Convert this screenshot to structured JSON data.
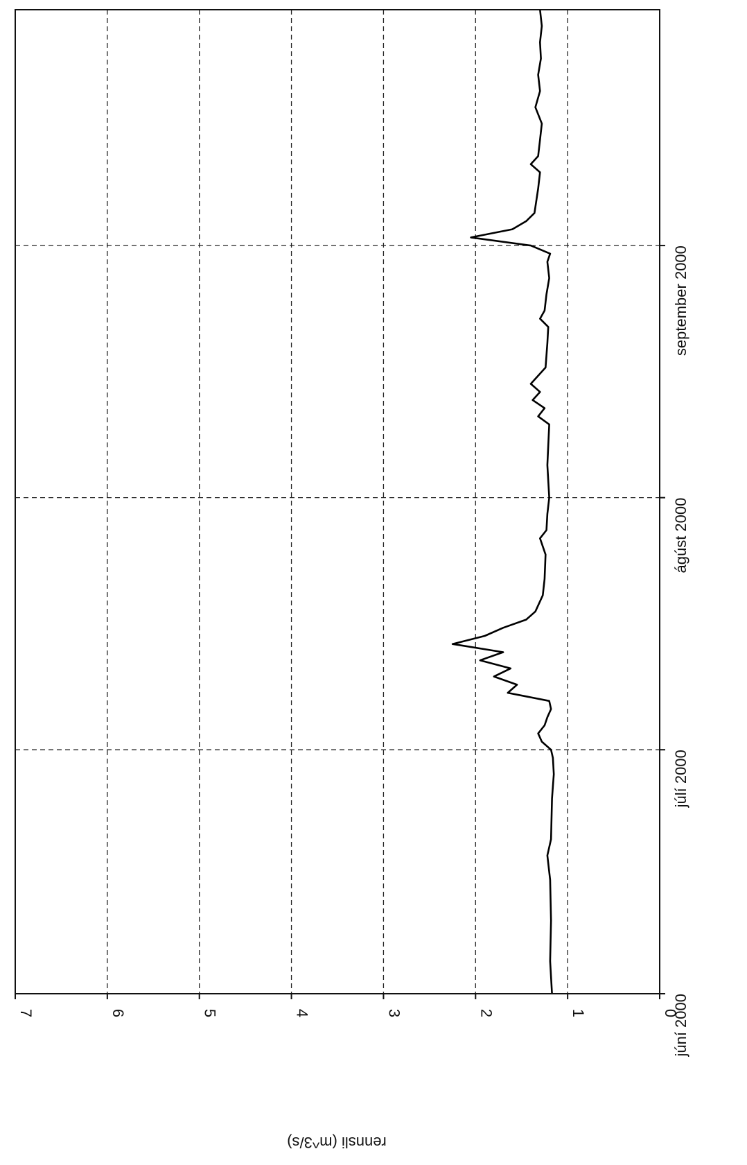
{
  "chart_data": {
    "type": "line",
    "orientation": "rotated-90-clockwise",
    "ylabel": "rennsli (m^3/s)",
    "xlabel": "",
    "ylim": [
      0,
      7
    ],
    "y_ticks": [
      0,
      1,
      2,
      3,
      4,
      5,
      6,
      7
    ],
    "y_tick_labels": [
      "0",
      "1",
      "2",
      "3",
      "4",
      "5",
      "6",
      "7"
    ],
    "xlim": [
      "2000-06-01",
      "2000-09-30"
    ],
    "x_ticks": [
      "2000-06-01",
      "2000-07-01",
      "2000-08-01",
      "2000-09-01"
    ],
    "x_tick_labels": [
      "júní 2000",
      "júlí 2000",
      "ágúst 2000",
      "september 2000"
    ],
    "grid": true,
    "series": [
      {
        "x": [
          "2000-06-01",
          "2000-06-05",
          "2000-06-10",
          "2000-06-15",
          "2000-06-18",
          "2000-06-20",
          "2000-06-25",
          "2000-06-28",
          "2000-06-30",
          "2000-07-01",
          "2000-07-02",
          "2000-07-03",
          "2000-07-04",
          "2000-07-05",
          "2000-07-06",
          "2000-07-07",
          "2000-07-08",
          "2000-07-09",
          "2000-07-10",
          "2000-07-11",
          "2000-07-12",
          "2000-07-13",
          "2000-07-14",
          "2000-07-15",
          "2000-07-16",
          "2000-07-17",
          "2000-07-18",
          "2000-07-20",
          "2000-07-22",
          "2000-07-25",
          "2000-07-27",
          "2000-07-28",
          "2000-07-30",
          "2000-08-01",
          "2000-08-05",
          "2000-08-10",
          "2000-08-11",
          "2000-08-12",
          "2000-08-13",
          "2000-08-14",
          "2000-08-15",
          "2000-08-17",
          "2000-08-20",
          "2000-08-22",
          "2000-08-23",
          "2000-08-24",
          "2000-08-26",
          "2000-08-28",
          "2000-08-30",
          "2000-08-31",
          "2000-09-01",
          "2000-09-02",
          "2000-09-03",
          "2000-09-04",
          "2000-09-05",
          "2000-09-08",
          "2000-09-10",
          "2000-09-11",
          "2000-09-12",
          "2000-09-14",
          "2000-09-16",
          "2000-09-18",
          "2000-09-20",
          "2000-09-22",
          "2000-09-24",
          "2000-09-26",
          "2000-09-28",
          "2000-09-30"
        ],
        "y": [
          1.17,
          1.19,
          1.18,
          1.19,
          1.22,
          1.18,
          1.17,
          1.15,
          1.16,
          1.18,
          1.28,
          1.32,
          1.25,
          1.22,
          1.18,
          1.2,
          1.65,
          1.55,
          1.8,
          1.62,
          1.95,
          1.7,
          2.25,
          1.9,
          1.7,
          1.45,
          1.35,
          1.27,
          1.25,
          1.24,
          1.3,
          1.23,
          1.22,
          1.2,
          1.22,
          1.2,
          1.32,
          1.25,
          1.38,
          1.3,
          1.4,
          1.24,
          1.22,
          1.21,
          1.3,
          1.25,
          1.23,
          1.2,
          1.22,
          1.19,
          1.4,
          2.05,
          1.6,
          1.45,
          1.36,
          1.32,
          1.3,
          1.4,
          1.32,
          1.3,
          1.28,
          1.35,
          1.3,
          1.32,
          1.29,
          1.3,
          1.28,
          1.3
        ]
      }
    ]
  }
}
